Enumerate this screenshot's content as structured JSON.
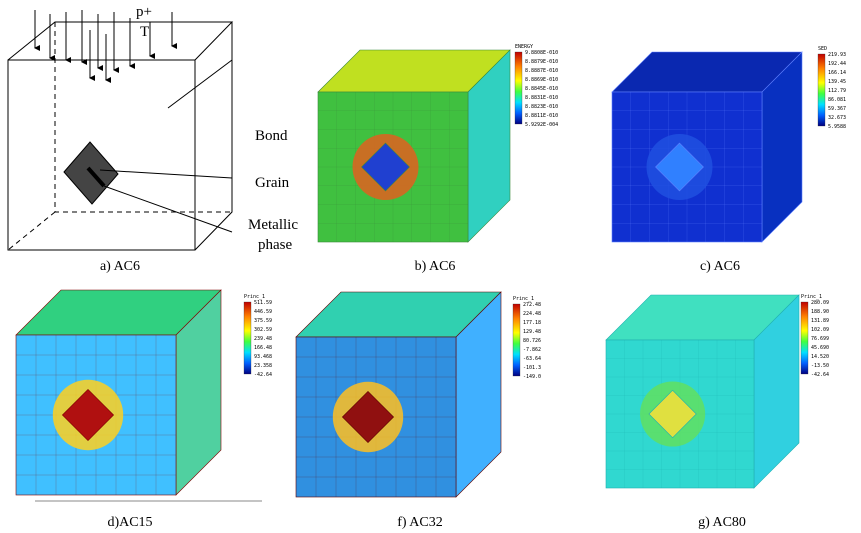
{
  "panel_a": {
    "labels": {
      "pressure": "p+",
      "temperature": "T",
      "bond": "Bond",
      "grain": "Grain",
      "metallic_1": "Metallic",
      "metallic_2": "phase"
    },
    "caption": "a) AC6"
  },
  "panels": [
    {
      "caption": "b) AC6",
      "legend_title": "ENERGY",
      "legend_labels": [
        "9.8808E-010",
        "8.8879E-010",
        "8.8887E-010",
        "8.8869E-010",
        "8.8845E-010",
        "8.8831E-010",
        "8.8823E-010",
        "8.8811E-010",
        "5.9292E-004"
      ]
    },
    {
      "caption": "c) AC6",
      "legend_title": "SED",
      "legend_labels": [
        "219.93",
        "192.44",
        "166.14",
        "139.45",
        "112.79",
        "86.081",
        "59.367",
        "32.673",
        "5.9588"
      ]
    },
    {
      "caption": "d)AC15",
      "legend_title": "Princ_1",
      "legend_labels": [
        "511.59",
        "446.59",
        "375.59",
        "302.59",
        "239.48",
        "166.48",
        "93.468",
        "23.358",
        "-42.64"
      ]
    },
    {
      "caption": "f) AC32",
      "legend_title": "Princ_1",
      "legend_labels": [
        "272.48",
        "224.48",
        "177.18",
        "129.48",
        "80.726",
        "-7.862",
        "-63.64",
        "-101.3",
        "-149.0"
      ]
    },
    {
      "caption": "g) AC80",
      "legend_title": "Princ_1",
      "legend_labels": [
        "280.09",
        "188.90",
        "131.89",
        "102.09",
        "76.699",
        "45.690",
        "14.520",
        "-13.50",
        "-42.64"
      ]
    }
  ]
}
